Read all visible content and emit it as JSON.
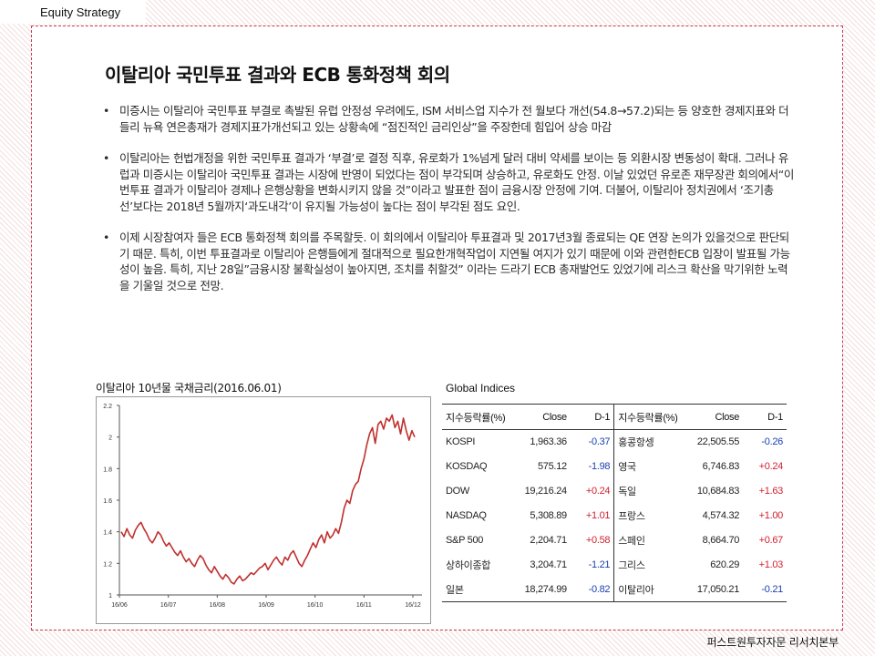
{
  "header": {
    "label": "Equity Strategy"
  },
  "title": "이탈리아 국민투표 결과와 ECB 통화정책 회의",
  "bullets": [
    {
      "text": "미증시는 이탈리아 국민투표 부결로 촉발된 유럽 안정성 우려에도, ISM 서비스업 지수가 전 월보다 개선(54.8→57.2)되는 등 양호한 경제지표와 더들리 뉴욕 연은총재가 경제지표가개선되고 있는 상황속에 “점진적인 금리인상”을 주장한데 힘입어 상승 마감"
    },
    {
      "text": "이탈리아는 헌법개정을 위한 국민투표 결과가 ‘부결’로 결정 직후, 유로화가 1%넘게 달러 대비 약세를 보이는 등 외환시장 변동성이 확대. 그러나 유럽과 미증시는 이탈리아 국민투표 결과는 시장에 반영이 되었다는 점이 부각되며 상승하고, 유로화도 안정. 이날 있었던 유로존 재무장관 회의에서“이번투표 결과가 이탈리아 경제나 은행상황을 변화시키지 않을 것”이라고 발표한 점이 금융시장 안정에 기여. 더불어, 이탈리아 정치권에서 ‘조기총선’보다는 2018년 5월까지‘과도내각’이 유지될 가능성이 높다는 점이 부각된 점도 요인."
    },
    {
      "text": "이제 시장참여자 들은 ECB 통화정책 회의를 주목할듯. 이 회의에서 이탈리아 투표결과 및 2017년3월 종료되는 QE 연장 논의가 있을것으로 판단되기 때문. 특히, 이번 투표결과로 이탈리아 은행들에게 절대적으로 필요한개혁작업이 지연될 여지가 있기 때문에 이와 관련한ECB 입장이 발표될 가능성이 높음. 특히, 지난 28일”금융시장 불확실성이 높아지면, 조치를 취할것” 이라는 드라기 ECB 총재발언도 있었기에 리스크 확산을 막기위한 노력을 기울일 것으로 전망."
    }
  ],
  "chart_data": {
    "type": "line",
    "title": "이탈리아 10년물 국채금리(2016.06.01)",
    "xlabel": "",
    "ylabel": "",
    "x_ticks": [
      "16/06",
      "16/07",
      "16/08",
      "16/09",
      "16/10",
      "16/11",
      "16/12"
    ],
    "y_ticks": [
      "1",
      "1.2",
      "1.4",
      "1.6",
      "1.8",
      "2",
      "2.2"
    ],
    "ylim": [
      1.0,
      2.2
    ],
    "grid": false,
    "color": "#c0302e",
    "series": [
      {
        "name": "",
        "values": [
          1.4,
          1.37,
          1.42,
          1.38,
          1.36,
          1.41,
          1.44,
          1.46,
          1.42,
          1.39,
          1.35,
          1.33,
          1.36,
          1.4,
          1.38,
          1.34,
          1.31,
          1.33,
          1.3,
          1.27,
          1.25,
          1.28,
          1.24,
          1.21,
          1.23,
          1.2,
          1.18,
          1.22,
          1.25,
          1.23,
          1.19,
          1.16,
          1.14,
          1.18,
          1.15,
          1.12,
          1.1,
          1.13,
          1.11,
          1.08,
          1.07,
          1.1,
          1.12,
          1.09,
          1.1,
          1.12,
          1.14,
          1.13,
          1.15,
          1.17,
          1.18,
          1.2,
          1.16,
          1.19,
          1.22,
          1.24,
          1.21,
          1.19,
          1.24,
          1.22,
          1.26,
          1.28,
          1.24,
          1.2,
          1.18,
          1.22,
          1.25,
          1.29,
          1.33,
          1.3,
          1.35,
          1.38,
          1.33,
          1.4,
          1.36,
          1.38,
          1.42,
          1.39,
          1.46,
          1.55,
          1.6,
          1.58,
          1.66,
          1.7,
          1.72,
          1.8,
          1.86,
          1.95,
          2.02,
          2.06,
          1.96,
          2.08,
          2.1,
          2.05,
          2.12,
          2.1,
          2.14,
          2.06,
          2.1,
          2.02,
          2.12,
          2.04,
          1.98,
          2.04,
          2.0
        ]
      }
    ]
  },
  "table": {
    "title": "Global Indices",
    "headers": {
      "name": "지수등락률(%)",
      "close": "Close",
      "change": "D-1"
    },
    "rows": [
      {
        "l_name": "KOSPI",
        "l_close": "1,963.36",
        "l_chg": "-0.37",
        "r_name": "홍콩항셍",
        "r_close": "22,505.55",
        "r_chg": "-0.26"
      },
      {
        "l_name": "KOSDAQ",
        "l_close": "575.12",
        "l_chg": "-1.98",
        "r_name": "영국",
        "r_close": "6,746.83",
        "r_chg": "+0.24"
      },
      {
        "l_name": "DOW",
        "l_close": "19,216.24",
        "l_chg": "+0.24",
        "r_name": "독일",
        "r_close": "10,684.83",
        "r_chg": "+1.63"
      },
      {
        "l_name": "NASDAQ",
        "l_close": "5,308.89",
        "l_chg": "+1.01",
        "r_name": "프랑스",
        "r_close": "4,574.32",
        "r_chg": "+1.00"
      },
      {
        "l_name": "S&P 500",
        "l_close": "2,204.71",
        "l_chg": "+0.58",
        "r_name": "스페인",
        "r_close": "8,664.70",
        "r_chg": "+0.67"
      },
      {
        "l_name": "상하이종합",
        "l_close": "3,204.71",
        "l_chg": "-1.21",
        "r_name": "그리스",
        "r_close": "620.29",
        "r_chg": "+1.03"
      },
      {
        "l_name": "일본",
        "l_close": "18,274.99",
        "l_chg": "-0.82",
        "r_name": "이탈리아",
        "r_close": "17,050.21",
        "r_chg": "-0.21"
      }
    ]
  },
  "footer": {
    "label": "퍼스트원투자자문 리서치본부"
  },
  "colors": {
    "accent": "#c9384a",
    "positive": "#d1202f",
    "negative": "#1a3fb0"
  }
}
